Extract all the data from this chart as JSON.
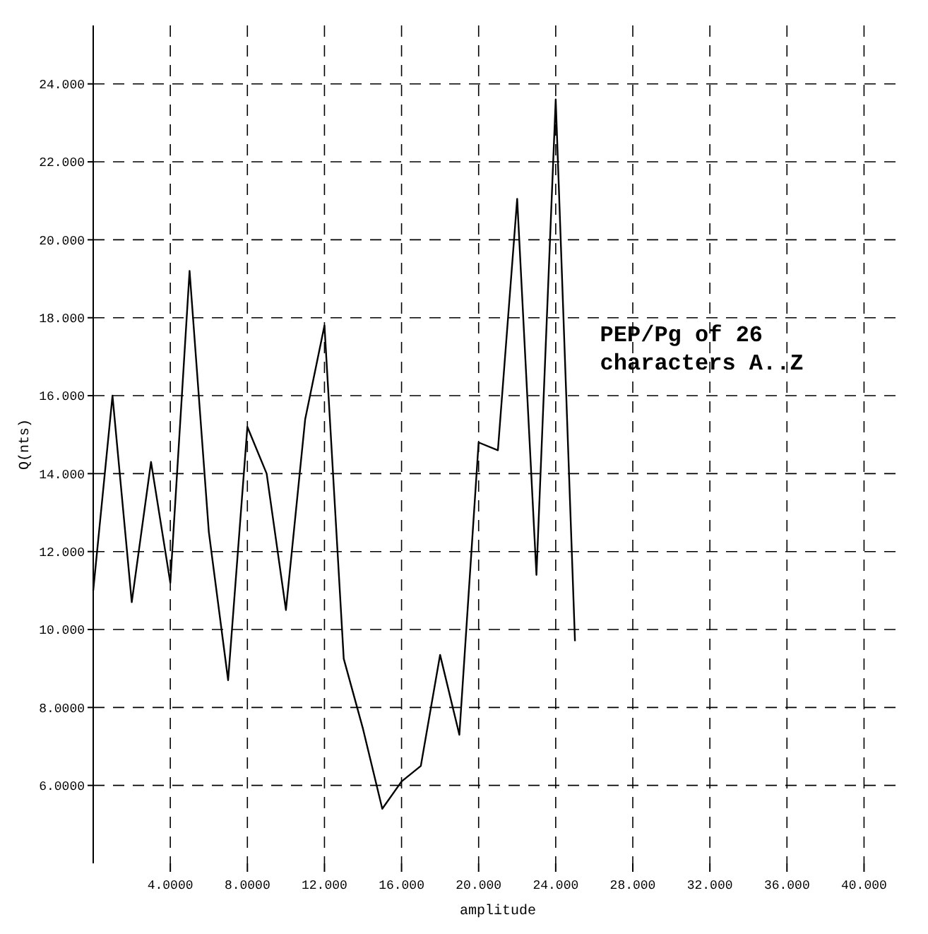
{
  "chart_data": {
    "type": "line",
    "xlabel": "amplitude",
    "ylabel": "Q(nts)",
    "x": [
      0,
      1,
      2,
      3,
      4,
      5,
      6,
      7,
      8,
      9,
      10,
      11,
      12,
      13,
      14,
      15,
      16,
      17,
      18,
      19,
      20,
      21,
      22,
      23,
      24,
      25
    ],
    "series": [
      {
        "color": "#000000",
        "values": [
          11.0,
          16.0,
          10.7,
          14.3,
          11.2,
          19.2,
          12.5,
          8.7,
          15.2,
          14.0,
          10.5,
          15.4,
          17.8,
          9.25,
          7.45,
          5.4,
          6.1,
          6.5,
          9.35,
          7.3,
          14.8,
          14.6,
          21.05,
          11.4,
          23.6,
          9.7
        ]
      }
    ],
    "xlim": [
      0,
      42
    ],
    "ylim": [
      4,
      25.5
    ],
    "xticks": [
      {
        "value": 4,
        "label": "4.0000"
      },
      {
        "value": 8,
        "label": "8.0000"
      },
      {
        "value": 12,
        "label": "12.000"
      },
      {
        "value": 16,
        "label": "16.000"
      },
      {
        "value": 20,
        "label": "20.000"
      },
      {
        "value": 24,
        "label": "24.000"
      },
      {
        "value": 28,
        "label": "28.000"
      },
      {
        "value": 32,
        "label": "32.000"
      },
      {
        "value": 36,
        "label": "36.000"
      },
      {
        "value": 40,
        "label": "40.000"
      }
    ],
    "yticks": [
      {
        "value": 6,
        "label": "6.0000"
      },
      {
        "value": 8,
        "label": "8.0000"
      },
      {
        "value": 10,
        "label": "10.000"
      },
      {
        "value": 12,
        "label": "12.000"
      },
      {
        "value": 14,
        "label": "14.000"
      },
      {
        "value": 16,
        "label": "16.000"
      },
      {
        "value": 18,
        "label": "18.000"
      },
      {
        "value": 20,
        "label": "20.000"
      },
      {
        "value": 22,
        "label": "22.000"
      },
      {
        "value": 24,
        "label": "24.000"
      }
    ],
    "grid": true,
    "marker": "none",
    "line_style": "solid",
    "annotations": [
      "PEP/Pg of 26",
      "characters A..Z"
    ]
  }
}
